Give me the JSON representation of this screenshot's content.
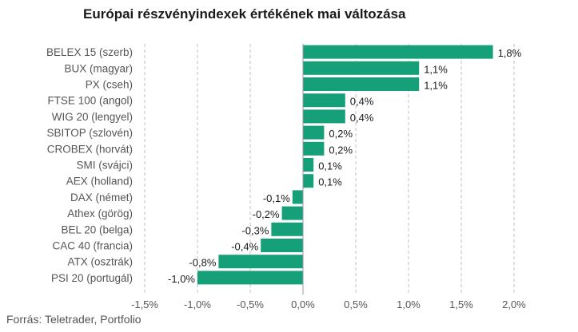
{
  "title": "Európai részvényindexek értékének mai változása",
  "source": "Forrás: Teletrader, Portfolio",
  "colors": {
    "bar": "#15a07a",
    "grid": "#bfbfbf",
    "text": "#555555"
  },
  "chart_data": {
    "type": "bar",
    "orientation": "horizontal",
    "categories": [
      "BELEX 15 (szerb)",
      "BUX (magyar)",
      "PX (cseh)",
      "FTSE 100 (angol)",
      "WIG 20 (lengyel)",
      "SBITOP (szlovén)",
      "CROBEX (horvát)",
      "SMI (svájci)",
      "AEX (holland)",
      "DAX (német)",
      "Athex (görög)",
      "BEL 20 (belga)",
      "CAC 40 (francia)",
      "ATX (osztrák)",
      "PSI 20 (portugál)"
    ],
    "values": [
      1.8,
      1.1,
      1.1,
      0.4,
      0.4,
      0.2,
      0.2,
      0.1,
      0.1,
      -0.1,
      -0.2,
      -0.3,
      -0.4,
      -0.8,
      -1.0
    ],
    "value_labels": [
      "1,8%",
      "1,1%",
      "1,1%",
      "0,4%",
      "0,4%",
      "0,2%",
      "0,2%",
      "0,1%",
      "0,1%",
      "-0,1%",
      "-0,2%",
      "-0,3%",
      "-0,4%",
      "-0,8%",
      "-1,0%"
    ],
    "xlim": [
      -1.5,
      2.0
    ],
    "xticks": [
      -1.5,
      -1.0,
      -0.5,
      0.0,
      0.5,
      1.0,
      1.5,
      2.0
    ],
    "xtick_labels": [
      "-1,5%",
      "-1,0%",
      "-0,5%",
      "0,0%",
      "0,5%",
      "1,0%",
      "1,5%",
      "2,0%"
    ],
    "grid": "vertical dashed",
    "legend": "none"
  }
}
